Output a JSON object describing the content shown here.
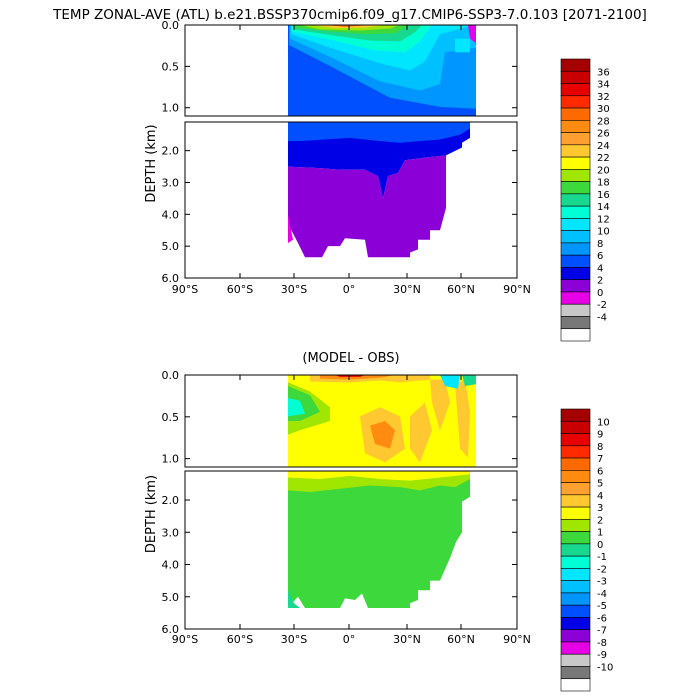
{
  "title": "TEMP ZONAL-AVE (ATL) b.e21.BSSP370cmip6.f09_g17.CMIP6-SSP3-7.0.103 [2071-2100]",
  "chart_data": [
    {
      "type": "heatmap",
      "subtitle": "",
      "ylabel": "DEPTH (km)",
      "x_ticks": [
        "90°S",
        "60°S",
        "30°S",
        "0°",
        "30°N",
        "60°N",
        "90°N"
      ],
      "y_ticks_upper": [
        "0.0",
        "0.5",
        "1.0"
      ],
      "y_ticks_lower": [
        "2.0",
        "3.0",
        "4.0",
        "5.0",
        "6.0"
      ],
      "xlim": [
        -90,
        90
      ],
      "ylim": [
        6.0,
        0.0
      ],
      "colorbar": {
        "labels": [
          "36",
          "34",
          "32",
          "30",
          "28",
          "26",
          "24",
          "22",
          "20",
          "18",
          "16",
          "14",
          "12",
          "10",
          "8",
          "6",
          "4",
          "2",
          "0",
          "-2",
          "-4"
        ],
        "colors": [
          "#a50000",
          "#c80000",
          "#e60000",
          "#ff2a00",
          "#ff6a00",
          "#ff8c10",
          "#ffa030",
          "#ffc830",
          "#ffff00",
          "#a0e600",
          "#3cd83c",
          "#18d890",
          "#00ffd2",
          "#00e6ff",
          "#00c0ff",
          "#0096ff",
          "#0050ff",
          "#0000e6",
          "#8a00d6",
          "#e600e6",
          "#c8c8c8",
          "#787878",
          "#ffffff"
        ]
      }
    },
    {
      "type": "heatmap",
      "subtitle": "(MODEL - OBS)",
      "ylabel": "DEPTH (km)",
      "x_ticks": [
        "90°S",
        "60°S",
        "30°S",
        "0°",
        "30°N",
        "60°N",
        "90°N"
      ],
      "y_ticks_upper": [
        "0.0",
        "0.5",
        "1.0"
      ],
      "y_ticks_lower": [
        "2.0",
        "3.0",
        "4.0",
        "5.0",
        "6.0"
      ],
      "xlim": [
        -90,
        90
      ],
      "ylim": [
        6.0,
        0.0
      ],
      "colorbar": {
        "labels": [
          "10",
          "9",
          "8",
          "7",
          "6",
          "5",
          "4",
          "3",
          "2",
          "1",
          "0",
          "-1",
          "-2",
          "-3",
          "-4",
          "-5",
          "-6",
          "-7",
          "-8",
          "-9",
          "-10"
        ],
        "colors": [
          "#a50000",
          "#c80000",
          "#e60000",
          "#ff2a00",
          "#ff6a00",
          "#ff8c10",
          "#ffa030",
          "#ffc830",
          "#ffff00",
          "#a0e600",
          "#3cd83c",
          "#18d890",
          "#00ffd2",
          "#00e6ff",
          "#00c0ff",
          "#0096ff",
          "#0050ff",
          "#0000e6",
          "#8a00d6",
          "#e600e6",
          "#c8c8c8",
          "#787878",
          "#ffffff"
        ]
      }
    }
  ]
}
